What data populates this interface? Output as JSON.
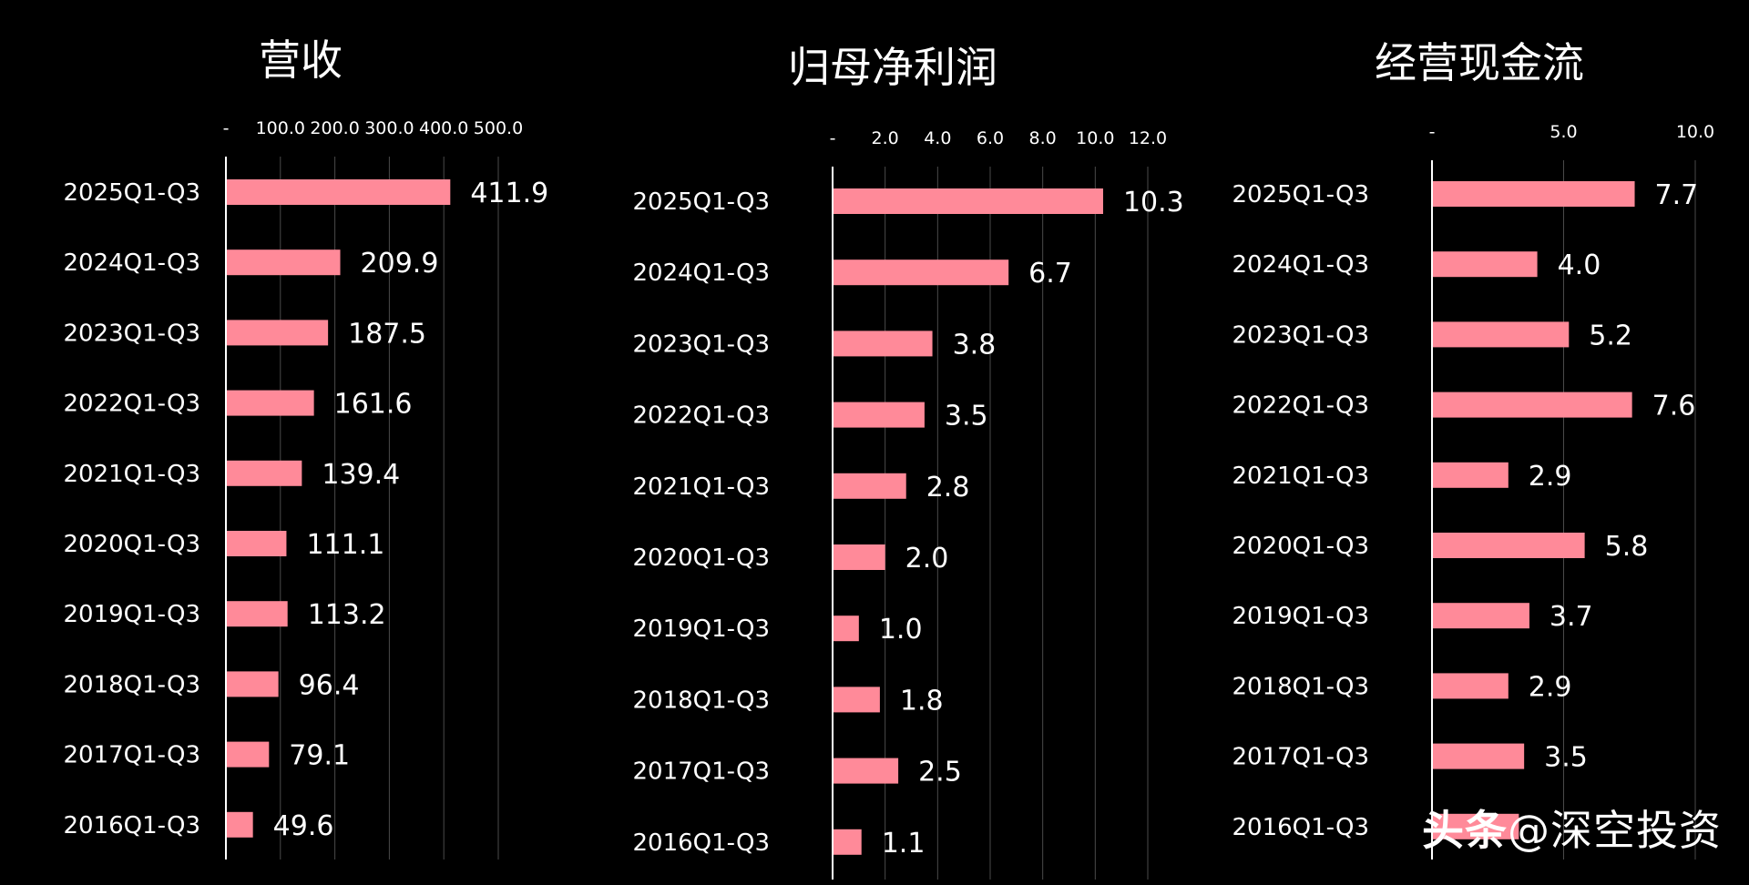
{
  "colors": {
    "background": "#000000",
    "bar": "#ff8a99",
    "text": "#ffffff",
    "grid": "#4a4a4a",
    "axis": "#ffffff"
  },
  "watermark": {
    "brand": "头条",
    "handle": "@深空投资"
  },
  "chart_data": [
    {
      "type": "bar",
      "orientation": "horizontal",
      "title": "营收",
      "categories": [
        "2025Q1-Q3",
        "2024Q1-Q3",
        "2023Q1-Q3",
        "2022Q1-Q3",
        "2021Q1-Q3",
        "2020Q1-Q3",
        "2019Q1-Q3",
        "2018Q1-Q3",
        "2017Q1-Q3",
        "2016Q1-Q3"
      ],
      "values": [
        411.9,
        209.9,
        187.5,
        161.6,
        139.4,
        111.1,
        113.2,
        96.4,
        79.1,
        49.6
      ],
      "value_labels": [
        "411.9",
        "209.9",
        "187.5",
        "161.6",
        "139.4",
        "111.1",
        "113.2",
        "96.4",
        "79.1",
        "49.6"
      ],
      "xlim": [
        0,
        500
      ],
      "ticks": [
        0,
        100,
        200,
        300,
        400,
        500
      ],
      "tick_labels": [
        "-",
        "100.0",
        "200.0",
        "300.0",
        "400.0",
        "500.0"
      ],
      "xaxis_position": "top",
      "grid": true
    },
    {
      "type": "bar",
      "orientation": "horizontal",
      "title": "归母净利润",
      "categories": [
        "2025Q1-Q3",
        "2024Q1-Q3",
        "2023Q1-Q3",
        "2022Q1-Q3",
        "2021Q1-Q3",
        "2020Q1-Q3",
        "2019Q1-Q3",
        "2018Q1-Q3",
        "2017Q1-Q3",
        "2016Q1-Q3"
      ],
      "values": [
        10.3,
        6.7,
        3.8,
        3.5,
        2.8,
        2.0,
        1.0,
        1.8,
        2.5,
        1.1
      ],
      "value_labels": [
        "10.3",
        "6.7",
        "3.8",
        "3.5",
        "2.8",
        "2.0",
        "1.0",
        "1.8",
        "2.5",
        "1.1"
      ],
      "xlim": [
        0,
        12
      ],
      "ticks": [
        0,
        2,
        4,
        6,
        8,
        10,
        12
      ],
      "tick_labels": [
        "-",
        "2.0",
        "4.0",
        "6.0",
        "8.0",
        "10.0",
        "12.0"
      ],
      "xaxis_position": "top",
      "grid": true
    },
    {
      "type": "bar",
      "orientation": "horizontal",
      "title": "经营现金流",
      "categories": [
        "2025Q1-Q3",
        "2024Q1-Q3",
        "2023Q1-Q3",
        "2022Q1-Q3",
        "2021Q1-Q3",
        "2020Q1-Q3",
        "2019Q1-Q3",
        "2018Q1-Q3",
        "2017Q1-Q3",
        "2016Q1-Q3"
      ],
      "values": [
        7.7,
        4.0,
        5.2,
        7.6,
        2.9,
        5.8,
        3.7,
        2.9,
        3.5,
        3.3
      ],
      "value_labels": [
        "7.7",
        "4.0",
        "5.2",
        "7.6",
        "2.9",
        "5.8",
        "3.7",
        "2.9",
        "3.5",
        ""
      ],
      "xlim": [
        0,
        10
      ],
      "ticks": [
        0,
        5,
        10
      ],
      "tick_labels": [
        "-",
        "5.0",
        "10.0"
      ],
      "xaxis_position": "top",
      "grid": true
    }
  ]
}
